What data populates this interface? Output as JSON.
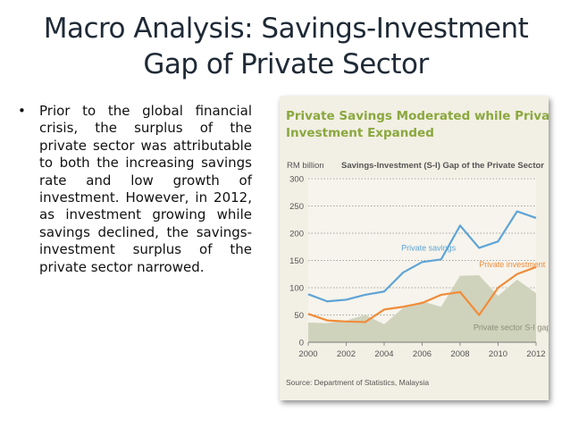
{
  "slide": {
    "title_line1": "Macro Analysis: Savings-Investment",
    "title_line2": "Gap of Private Sector",
    "bullet_mark": "•",
    "bullet_text": "Prior to the global financial crisis, the surplus of the private sector was attributable to both the increasing savings rate and low growth of investment. However, in 2012, as investment growing while savings declined, the savings-investment surplus of the private sector narrowed."
  },
  "figure": {
    "title_line1": "Private Savings Moderated while Private",
    "title_line2": "Investment Expanded",
    "source": "Source: Department of Statistics, Malaysia"
  },
  "chart_data": {
    "type": "line",
    "subtitle": "Savings-Investment (S-I) Gap of the Private Sector",
    "ylabel": "RM billion",
    "ylim": [
      0,
      300
    ],
    "yticks": [
      0,
      50,
      100,
      150,
      200,
      250,
      300
    ],
    "xlim": [
      2000,
      2012
    ],
    "xticks": [
      2000,
      2002,
      2004,
      2006,
      2008,
      2010,
      2012
    ],
    "grid": "horizontal dotted",
    "x": [
      2000,
      2001,
      2002,
      2003,
      2004,
      2005,
      2006,
      2007,
      2008,
      2009,
      2010,
      2011,
      2012
    ],
    "series": [
      {
        "name": "Private savings",
        "kind": "line",
        "color": "#5fa4d6",
        "values": [
          88,
          75,
          78,
          87,
          93,
          128,
          147,
          152,
          214,
          173,
          185,
          240,
          228
        ]
      },
      {
        "name": "Private investment",
        "kind": "line",
        "color": "#f08c3a",
        "values": [
          52,
          40,
          38,
          37,
          60,
          65,
          72,
          87,
          92,
          50,
          100,
          125,
          138
        ]
      },
      {
        "name": "Private sector S-I gap",
        "kind": "area",
        "color": "#d0d3bc",
        "values": [
          36,
          35,
          40,
          50,
          33,
          63,
          75,
          65,
          122,
          123,
          85,
          115,
          90
        ]
      }
    ]
  }
}
